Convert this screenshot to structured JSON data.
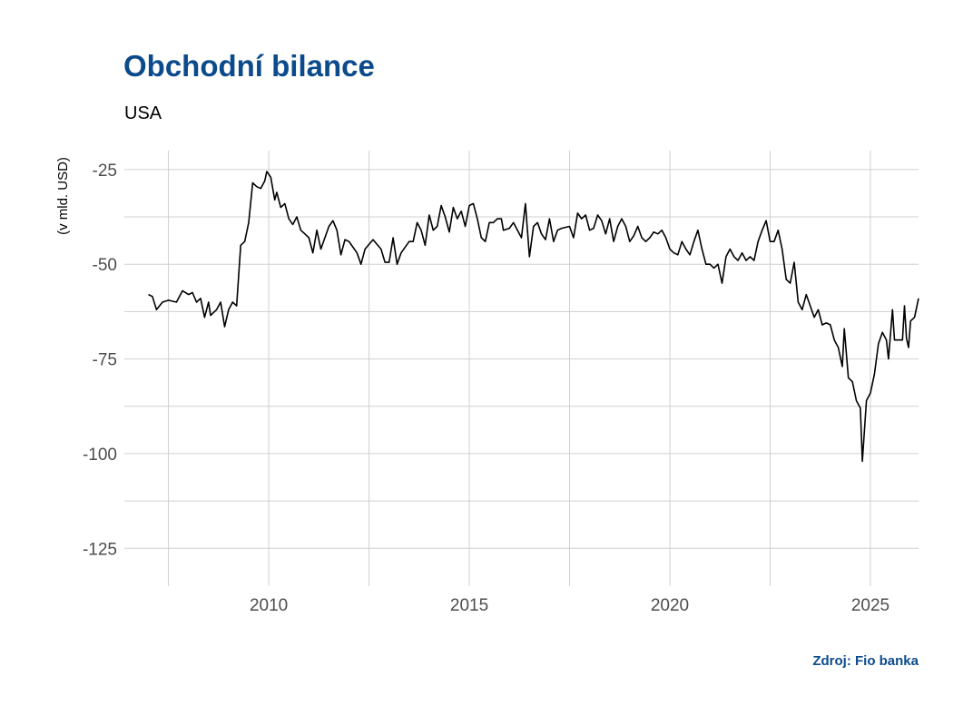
{
  "header": {
    "title": "Obchodní bilance",
    "subtitle": "USA"
  },
  "footer": {
    "source": "Zdroj: Fio banka"
  },
  "colors": {
    "title": "#0b4a8b",
    "line": "#000000",
    "grid": "#d0d0d0"
  },
  "chart_data": {
    "type": "line",
    "title": "Obchodní bilance",
    "subtitle": "USA",
    "xlabel": "",
    "ylabel": "(v mld. USD)",
    "xlim": [
      2006.4,
      2026.2
    ],
    "ylim": [
      -135,
      -20
    ],
    "x_ticks": [
      2010,
      2015,
      2020,
      2025
    ],
    "y_ticks": [
      -25,
      -50,
      -75,
      -100,
      -125
    ],
    "grid": true,
    "series": [
      {
        "values": [
          [
            2007.0,
            -58.0
          ],
          [
            2007.1,
            -58.5
          ],
          [
            2007.2,
            -62.0
          ],
          [
            2007.35,
            -60.0
          ],
          [
            2007.5,
            -59.5
          ],
          [
            2007.7,
            -60.0
          ],
          [
            2007.85,
            -57.0
          ],
          [
            2008.0,
            -58.0
          ],
          [
            2008.1,
            -57.5
          ],
          [
            2008.2,
            -60.0
          ],
          [
            2008.3,
            -59.0
          ],
          [
            2008.4,
            -64.0
          ],
          [
            2008.5,
            -60.0
          ],
          [
            2008.55,
            -63.5
          ],
          [
            2008.7,
            -62.0
          ],
          [
            2008.8,
            -60.0
          ],
          [
            2008.9,
            -66.5
          ],
          [
            2009.0,
            -62.0
          ],
          [
            2009.1,
            -60.0
          ],
          [
            2009.2,
            -61.0
          ],
          [
            2009.3,
            -45.0
          ],
          [
            2009.4,
            -44.0
          ],
          [
            2009.5,
            -39.0
          ],
          [
            2009.6,
            -28.5
          ],
          [
            2009.7,
            -29.5
          ],
          [
            2009.8,
            -30.0
          ],
          [
            2009.9,
            -28.0
          ],
          [
            2009.95,
            -25.5
          ],
          [
            2010.05,
            -27.0
          ],
          [
            2010.15,
            -33.0
          ],
          [
            2010.2,
            -31.0
          ],
          [
            2010.3,
            -35.0
          ],
          [
            2010.4,
            -34.0
          ],
          [
            2010.5,
            -38.0
          ],
          [
            2010.6,
            -39.5
          ],
          [
            2010.7,
            -37.5
          ],
          [
            2010.8,
            -41.0
          ],
          [
            2010.9,
            -42.0
          ],
          [
            2011.0,
            -43.0
          ],
          [
            2011.1,
            -47.0
          ],
          [
            2011.2,
            -41.0
          ],
          [
            2011.3,
            -46.0
          ],
          [
            2011.5,
            -40.0
          ],
          [
            2011.6,
            -38.5
          ],
          [
            2011.7,
            -41.0
          ],
          [
            2011.8,
            -47.5
          ],
          [
            2011.9,
            -43.5
          ],
          [
            2012.0,
            -44.0
          ],
          [
            2012.1,
            -45.5
          ],
          [
            2012.2,
            -47.0
          ],
          [
            2012.3,
            -50.0
          ],
          [
            2012.4,
            -46.0
          ],
          [
            2012.6,
            -43.5
          ],
          [
            2012.8,
            -46.0
          ],
          [
            2012.9,
            -49.5
          ],
          [
            2013.0,
            -49.5
          ],
          [
            2013.1,
            -43.0
          ],
          [
            2013.2,
            -50.0
          ],
          [
            2013.3,
            -47.0
          ],
          [
            2013.5,
            -44.0
          ],
          [
            2013.6,
            -44.0
          ],
          [
            2013.7,
            -39.0
          ],
          [
            2013.8,
            -41.0
          ],
          [
            2013.9,
            -45.0
          ],
          [
            2014.0,
            -37.0
          ],
          [
            2014.1,
            -41.0
          ],
          [
            2014.2,
            -40.0
          ],
          [
            2014.3,
            -34.5
          ],
          [
            2014.4,
            -37.5
          ],
          [
            2014.5,
            -41.5
          ],
          [
            2014.6,
            -35.0
          ],
          [
            2014.7,
            -38.0
          ],
          [
            2014.8,
            -36.0
          ],
          [
            2014.9,
            -40.0
          ],
          [
            2015.0,
            -34.5
          ],
          [
            2015.1,
            -34.0
          ],
          [
            2015.2,
            -38.0
          ],
          [
            2015.3,
            -43.0
          ],
          [
            2015.4,
            -44.0
          ],
          [
            2015.5,
            -39.0
          ],
          [
            2015.6,
            -39.0
          ],
          [
            2015.7,
            -38.0
          ],
          [
            2015.8,
            -38.0
          ],
          [
            2015.85,
            -41.0
          ],
          [
            2016.0,
            -40.5
          ],
          [
            2016.1,
            -39.0
          ],
          [
            2016.2,
            -41.0
          ],
          [
            2016.3,
            -43.0
          ],
          [
            2016.4,
            -34.0
          ],
          [
            2016.5,
            -48.0
          ],
          [
            2016.6,
            -40.0
          ],
          [
            2016.7,
            -39.0
          ],
          [
            2016.8,
            -42.0
          ],
          [
            2016.9,
            -43.5
          ],
          [
            2017.0,
            -38.0
          ],
          [
            2017.1,
            -44.0
          ],
          [
            2017.2,
            -41.0
          ],
          [
            2017.3,
            -40.5
          ],
          [
            2017.5,
            -40.0
          ],
          [
            2017.6,
            -43.0
          ],
          [
            2017.7,
            -36.5
          ],
          [
            2017.8,
            -38.0
          ],
          [
            2017.9,
            -37.0
          ],
          [
            2018.0,
            -41.0
          ],
          [
            2018.1,
            -40.5
          ],
          [
            2018.2,
            -37.0
          ],
          [
            2018.3,
            -38.5
          ],
          [
            2018.4,
            -42.0
          ],
          [
            2018.5,
            -38.0
          ],
          [
            2018.6,
            -44.0
          ],
          [
            2018.7,
            -40.0
          ],
          [
            2018.8,
            -38.0
          ],
          [
            2018.9,
            -40.0
          ],
          [
            2019.0,
            -44.0
          ],
          [
            2019.1,
            -42.5
          ],
          [
            2019.2,
            -40.0
          ],
          [
            2019.3,
            -43.0
          ],
          [
            2019.4,
            -44.0
          ],
          [
            2019.5,
            -43.0
          ],
          [
            2019.6,
            -41.5
          ],
          [
            2019.7,
            -42.0
          ],
          [
            2019.8,
            -41.0
          ],
          [
            2019.9,
            -43.0
          ],
          [
            2020.0,
            -46.0
          ],
          [
            2020.1,
            -47.0
          ],
          [
            2020.2,
            -47.5
          ],
          [
            2020.3,
            -44.0
          ],
          [
            2020.4,
            -46.0
          ],
          [
            2020.5,
            -47.5
          ],
          [
            2020.6,
            -44.0
          ],
          [
            2020.7,
            -41.0
          ],
          [
            2020.8,
            -46.0
          ],
          [
            2020.9,
            -50.0
          ],
          [
            2021.0,
            -50.0
          ],
          [
            2021.1,
            -51.0
          ],
          [
            2021.2,
            -50.0
          ],
          [
            2021.3,
            -55.0
          ],
          [
            2021.4,
            -48.0
          ],
          [
            2021.5,
            -46.0
          ],
          [
            2021.6,
            -48.0
          ],
          [
            2021.7,
            -49.0
          ],
          [
            2021.8,
            -47.0
          ],
          [
            2021.9,
            -49.0
          ],
          [
            2022.0,
            -48.0
          ],
          [
            2022.1,
            -49.0
          ],
          [
            2022.2,
            -44.0
          ],
          [
            2022.3,
            -41.0
          ],
          [
            2022.4,
            -38.5
          ],
          [
            2022.5,
            -44.0
          ],
          [
            2022.6,
            -44.0
          ],
          [
            2022.7,
            -41.0
          ],
          [
            2022.8,
            -46.0
          ],
          [
            2022.9,
            -54.0
          ],
          [
            2023.0,
            -55.0
          ],
          [
            2023.1,
            -49.5
          ],
          [
            2023.2,
            -60.0
          ],
          [
            2023.3,
            -62.0
          ],
          [
            2023.4,
            -58.0
          ],
          [
            2023.5,
            -61.0
          ],
          [
            2023.6,
            -64.0
          ],
          [
            2023.7,
            -62.0
          ],
          [
            2023.8,
            -66.0
          ],
          [
            2023.9,
            -65.5
          ],
          [
            2024.0,
            -66.0
          ],
          [
            2024.1,
            -70.0
          ],
          [
            2024.2,
            -72.0
          ],
          [
            2024.3,
            -77.0
          ],
          [
            2024.35,
            -67.0
          ],
          [
            2024.45,
            -80.0
          ],
          [
            2024.55,
            -81.0
          ],
          [
            2024.65,
            -86.0
          ],
          [
            2024.75,
            -88.0
          ],
          [
            2024.8,
            -102.0
          ],
          [
            2024.9,
            -86.0
          ],
          [
            2025.0,
            -84.0
          ],
          [
            2025.1,
            -79.0
          ],
          [
            2025.2,
            -71.0
          ],
          [
            2025.3,
            -68.0
          ],
          [
            2025.4,
            -70.0
          ],
          [
            2025.45,
            -75.0
          ],
          [
            2025.55,
            -62.0
          ],
          [
            2025.6,
            -70.0
          ],
          [
            2025.7,
            -70.0
          ],
          [
            2025.8,
            -70.0
          ],
          [
            2025.85,
            -61.0
          ],
          [
            2025.9,
            -69.5
          ],
          [
            2025.95,
            -72.0
          ],
          [
            2026.0,
            -65.0
          ],
          [
            2026.1,
            -64.0
          ],
          [
            2026.2,
            -59.0
          ]
        ]
      }
    ]
  }
}
